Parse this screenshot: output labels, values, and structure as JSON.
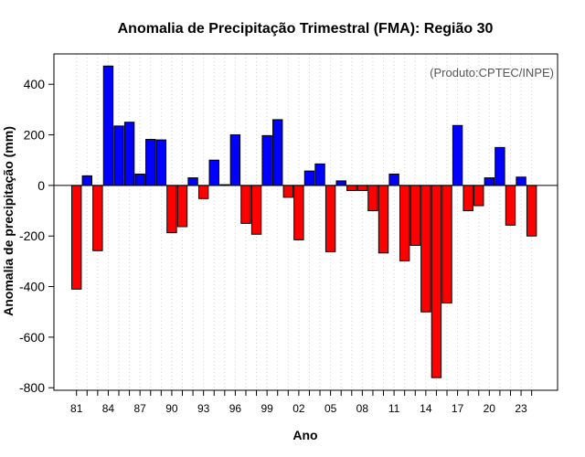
{
  "chart_data": {
    "type": "bar",
    "title": "Anomalia de Precipitação Trimestral (FMA): Região 30",
    "xlabel": "Ano",
    "ylabel": "Anomalia de precipitação (mm)",
    "annotation": "(Produto:CPTEC/INPE)",
    "ylim": [
      -810,
      520
    ],
    "yticks": [
      -800,
      -600,
      -400,
      -200,
      0,
      200,
      400
    ],
    "grid": true,
    "positive_color": "#0000ff",
    "negative_color": "#ff0000",
    "categories": [
      "81",
      "82",
      "83",
      "84",
      "85",
      "86",
      "87",
      "88",
      "89",
      "90",
      "91",
      "92",
      "93",
      "94",
      "95",
      "96",
      "97",
      "98",
      "99",
      "00",
      "01",
      "02",
      "03",
      "04",
      "05",
      "06",
      "07",
      "08",
      "09",
      "10",
      "11",
      "12",
      "13",
      "14",
      "15",
      "16",
      "17",
      "18",
      "19",
      "20",
      "21",
      "22",
      "23",
      "24"
    ],
    "xtick_labels": [
      "81",
      "84",
      "87",
      "90",
      "93",
      "96",
      "99",
      "02",
      "05",
      "08",
      "11",
      "14",
      "17",
      "20",
      "23"
    ],
    "values": [
      -410,
      38,
      -258,
      472,
      235,
      250,
      45,
      182,
      180,
      -187,
      -163,
      30,
      -52,
      100,
      3,
      200,
      -150,
      -193,
      197,
      260,
      -47,
      -215,
      57,
      85,
      -262,
      18,
      -20,
      -20,
      -100,
      -267,
      45,
      -298,
      -237,
      -500,
      -760,
      -465,
      237,
      -100,
      -80,
      30,
      150,
      -157,
      33,
      -200
    ]
  }
}
